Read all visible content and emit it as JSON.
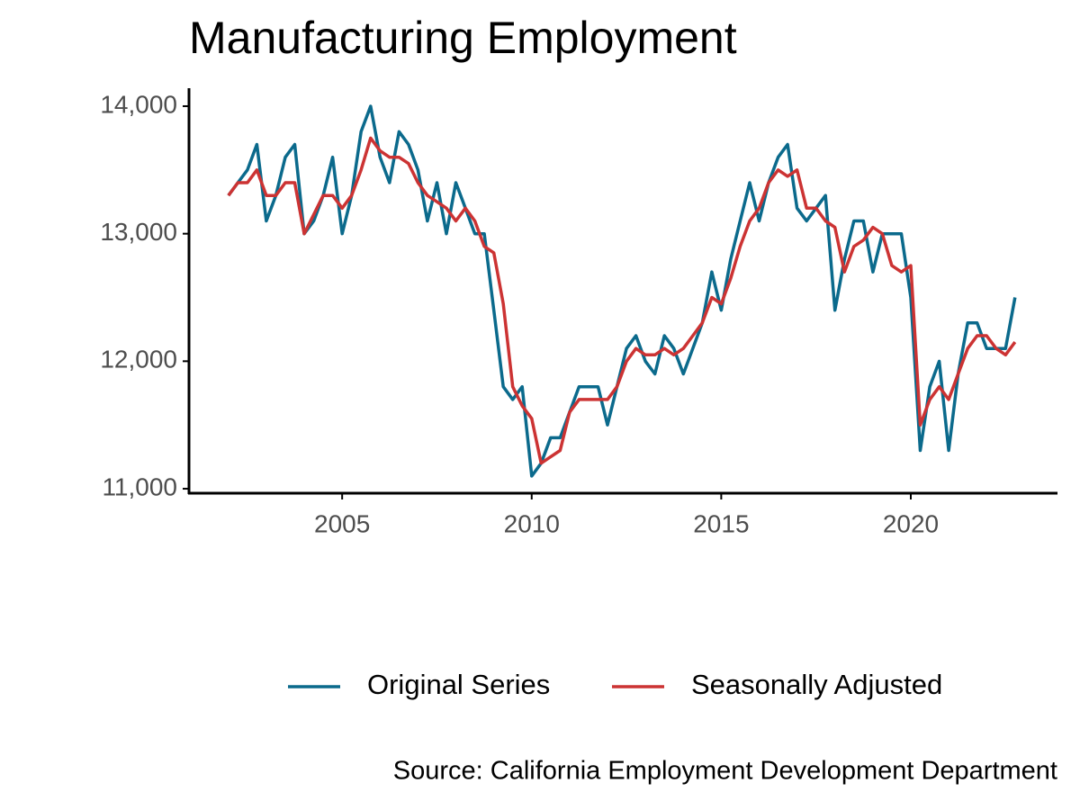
{
  "chart_data": {
    "type": "line",
    "title": "Manufacturing Employment",
    "caption": "Source: California Employment Development Department",
    "x": [
      2002.0,
      2002.25,
      2002.5,
      2002.75,
      2003.0,
      2003.25,
      2003.5,
      2003.75,
      2004.0,
      2004.25,
      2004.5,
      2004.75,
      2005.0,
      2005.25,
      2005.5,
      2005.75,
      2006.0,
      2006.25,
      2006.5,
      2006.75,
      2007.0,
      2007.25,
      2007.5,
      2007.75,
      2008.0,
      2008.25,
      2008.5,
      2008.75,
      2009.0,
      2009.25,
      2009.5,
      2009.75,
      2010.0,
      2010.25,
      2010.5,
      2010.75,
      2011.0,
      2011.25,
      2011.5,
      2011.75,
      2012.0,
      2012.25,
      2012.5,
      2012.75,
      2013.0,
      2013.25,
      2013.5,
      2013.75,
      2014.0,
      2014.25,
      2014.5,
      2014.75,
      2015.0,
      2015.25,
      2015.5,
      2015.75,
      2016.0,
      2016.25,
      2016.5,
      2016.75,
      2017.0,
      2017.25,
      2017.5,
      2017.75,
      2018.0,
      2018.25,
      2018.5,
      2018.75,
      2019.0,
      2019.25,
      2019.5,
      2019.75,
      2020.0,
      2020.25,
      2020.5,
      2020.75,
      2021.0,
      2021.25,
      2021.5,
      2021.75,
      2022.0,
      2022.25,
      2022.5,
      2022.75
    ],
    "series": [
      {
        "name": "Original Series",
        "color": "#0b6a8c",
        "values": [
          13300,
          13400,
          13500,
          13700,
          13100,
          13300,
          13600,
          13700,
          13000,
          13100,
          13300,
          13600,
          13000,
          13300,
          13800,
          14000,
          13600,
          13400,
          13800,
          13700,
          13500,
          13100,
          13400,
          13000,
          13400,
          13200,
          13000,
          13000,
          12400,
          11800,
          11700,
          11800,
          11100,
          11200,
          11400,
          11400,
          11600,
          11800,
          11800,
          11800,
          11500,
          11800,
          12100,
          12200,
          12000,
          11900,
          12200,
          12100,
          11900,
          12100,
          12300,
          12700,
          12400,
          12800,
          13100,
          13400,
          13100,
          13400,
          13600,
          13700,
          13200,
          13100,
          13200,
          13300,
          12400,
          12800,
          13100,
          13100,
          12700,
          13000,
          13000,
          13000,
          12500,
          11300,
          11800,
          12000,
          11300,
          11900,
          12300,
          12300,
          12100,
          12100,
          12100,
          12500
        ]
      },
      {
        "name": "Seasonally Adjusted",
        "color": "#cc3333",
        "values": [
          13300,
          13400,
          13400,
          13500,
          13300,
          13300,
          13400,
          13400,
          13000,
          13150,
          13300,
          13300,
          13200,
          13300,
          13500,
          13750,
          13650,
          13600,
          13600,
          13550,
          13400,
          13300,
          13250,
          13200,
          13100,
          13200,
          13100,
          12900,
          12850,
          12450,
          11800,
          11650,
          11550,
          11200,
          11250,
          11300,
          11600,
          11700,
          11700,
          11700,
          11700,
          11800,
          12000,
          12100,
          12050,
          12050,
          12100,
          12050,
          12100,
          12200,
          12300,
          12500,
          12450,
          12650,
          12900,
          13100,
          13200,
          13400,
          13500,
          13450,
          13500,
          13200,
          13200,
          13100,
          13050,
          12700,
          12900,
          12950,
          13050,
          13000,
          12750,
          12700,
          12750,
          11500,
          11700,
          11800,
          11700,
          11900,
          12100,
          12200,
          12200,
          12100,
          12050,
          12150
        ]
      }
    ],
    "xlim": [
      2000.96,
      2023.87
    ],
    "xticks": [
      2005,
      2010,
      2015,
      2020
    ],
    "ylim": [
      10965,
      14141
    ],
    "yticks": [
      {
        "value": 11000,
        "label": "11,000"
      },
      {
        "value": 12000,
        "label": "12,000"
      },
      {
        "value": 13000,
        "label": "13,000"
      },
      {
        "value": 14000,
        "label": "14,000"
      }
    ],
    "legend": "bottom"
  }
}
